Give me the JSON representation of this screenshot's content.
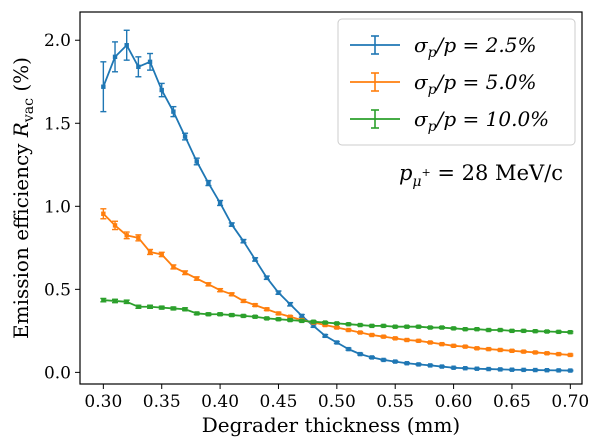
{
  "chart_data": {
    "type": "line",
    "xlabel": "Degrader thickness (mm)",
    "ylabel": "Emission efficiency R_vac (%)",
    "ylabel_main": "Emission efficiency ",
    "ylabel_symbol": "R",
    "ylabel_sub": "vac",
    "ylabel_unit": " (%)",
    "xlim": [
      0.28,
      0.71
    ],
    "ylim": [
      -0.07,
      2.17
    ],
    "xticks": [
      0.3,
      0.35,
      0.4,
      0.45,
      0.5,
      0.55,
      0.6,
      0.65,
      0.7
    ],
    "xtick_labels": [
      "0.30",
      "0.35",
      "0.40",
      "0.45",
      "0.50",
      "0.55",
      "0.60",
      "0.65",
      "0.70"
    ],
    "yticks": [
      0.0,
      0.5,
      1.0,
      1.5,
      2.0
    ],
    "ytick_labels": [
      "0.0",
      "0.5",
      "1.0",
      "1.5",
      "2.0"
    ],
    "grid": false,
    "legend_position": "top-right",
    "annotation": "p_μ+ = 28 MeV/c",
    "annotation_symbol": "p",
    "annotation_sub": "μ",
    "annotation_sup": "+",
    "annotation_rest": " = 28 MeV/c",
    "x": [
      0.3,
      0.31,
      0.32,
      0.33,
      0.34,
      0.35,
      0.36,
      0.37,
      0.38,
      0.39,
      0.4,
      0.41,
      0.42,
      0.43,
      0.44,
      0.45,
      0.46,
      0.47,
      0.48,
      0.49,
      0.5,
      0.51,
      0.52,
      0.53,
      0.54,
      0.55,
      0.56,
      0.57,
      0.58,
      0.59,
      0.6,
      0.61,
      0.62,
      0.63,
      0.64,
      0.65,
      0.66,
      0.67,
      0.68,
      0.69,
      0.7
    ],
    "series": [
      {
        "name": "σp/p = 2.5%",
        "legend_math": "σ",
        "legend_sub": "p",
        "legend_rest": "/p = 2.5%",
        "color": "#1f77b4",
        "values": [
          1.72,
          1.9,
          1.97,
          1.84,
          1.87,
          1.7,
          1.57,
          1.42,
          1.27,
          1.14,
          1.02,
          0.89,
          0.79,
          0.68,
          0.57,
          0.48,
          0.41,
          0.34,
          0.28,
          0.22,
          0.18,
          0.14,
          0.11,
          0.09,
          0.075,
          0.065,
          0.055,
          0.048,
          0.042,
          0.035,
          0.028,
          0.025,
          0.022,
          0.02,
          0.018,
          0.016,
          0.015,
          0.014,
          0.013,
          0.012,
          0.011
        ],
        "errors": [
          0.15,
          0.09,
          0.09,
          0.06,
          0.05,
          0.04,
          0.03,
          0.02,
          0.02,
          0.015,
          0.015,
          0.01,
          0.01,
          0.01,
          0.01,
          0.01,
          0.01,
          0.008,
          0.008,
          0.007,
          0.006,
          0.006,
          0.005,
          0.005,
          0.004,
          0.004,
          0.004,
          0.004,
          0.003,
          0.003,
          0.003,
          0.003,
          0.003,
          0.003,
          0.003,
          0.003,
          0.003,
          0.003,
          0.003,
          0.003,
          0.003
        ]
      },
      {
        "name": "σp/p = 5.0%",
        "legend_math": "σ",
        "legend_sub": "p",
        "legend_rest": "/p = 5.0%",
        "color": "#ff7f0e",
        "values": [
          0.955,
          0.885,
          0.825,
          0.81,
          0.725,
          0.71,
          0.635,
          0.6,
          0.565,
          0.53,
          0.495,
          0.47,
          0.43,
          0.405,
          0.38,
          0.355,
          0.335,
          0.315,
          0.3,
          0.285,
          0.27,
          0.255,
          0.24,
          0.225,
          0.215,
          0.205,
          0.195,
          0.19,
          0.18,
          0.17,
          0.16,
          0.155,
          0.145,
          0.14,
          0.135,
          0.13,
          0.125,
          0.12,
          0.115,
          0.11,
          0.105
        ],
        "errors": [
          0.03,
          0.025,
          0.02,
          0.018,
          0.015,
          0.013,
          0.012,
          0.011,
          0.01,
          0.009,
          0.009,
          0.008,
          0.008,
          0.007,
          0.007,
          0.007,
          0.006,
          0.006,
          0.006,
          0.006,
          0.006,
          0.005,
          0.005,
          0.005,
          0.005,
          0.005,
          0.005,
          0.005,
          0.005,
          0.005,
          0.005,
          0.005,
          0.005,
          0.005,
          0.005,
          0.005,
          0.005,
          0.005,
          0.005,
          0.005,
          0.005
        ]
      },
      {
        "name": "σp/p = 10.0%",
        "legend_math": "σ",
        "legend_sub": "p",
        "legend_rest": "/p = 10.0%",
        "color": "#2ca02c",
        "values": [
          0.435,
          0.43,
          0.425,
          0.395,
          0.395,
          0.39,
          0.385,
          0.38,
          0.355,
          0.35,
          0.35,
          0.345,
          0.34,
          0.335,
          0.325,
          0.32,
          0.315,
          0.31,
          0.305,
          0.3,
          0.295,
          0.29,
          0.285,
          0.28,
          0.28,
          0.275,
          0.275,
          0.275,
          0.27,
          0.27,
          0.265,
          0.26,
          0.26,
          0.255,
          0.255,
          0.25,
          0.25,
          0.248,
          0.246,
          0.244,
          0.242
        ],
        "errors": [
          0.01,
          0.01,
          0.01,
          0.009,
          0.009,
          0.008,
          0.008,
          0.008,
          0.007,
          0.007,
          0.007,
          0.007,
          0.006,
          0.006,
          0.006,
          0.006,
          0.006,
          0.006,
          0.006,
          0.005,
          0.005,
          0.005,
          0.005,
          0.005,
          0.005,
          0.005,
          0.005,
          0.005,
          0.005,
          0.005,
          0.005,
          0.005,
          0.005,
          0.005,
          0.005,
          0.005,
          0.005,
          0.005,
          0.005,
          0.005,
          0.005
        ]
      }
    ]
  }
}
